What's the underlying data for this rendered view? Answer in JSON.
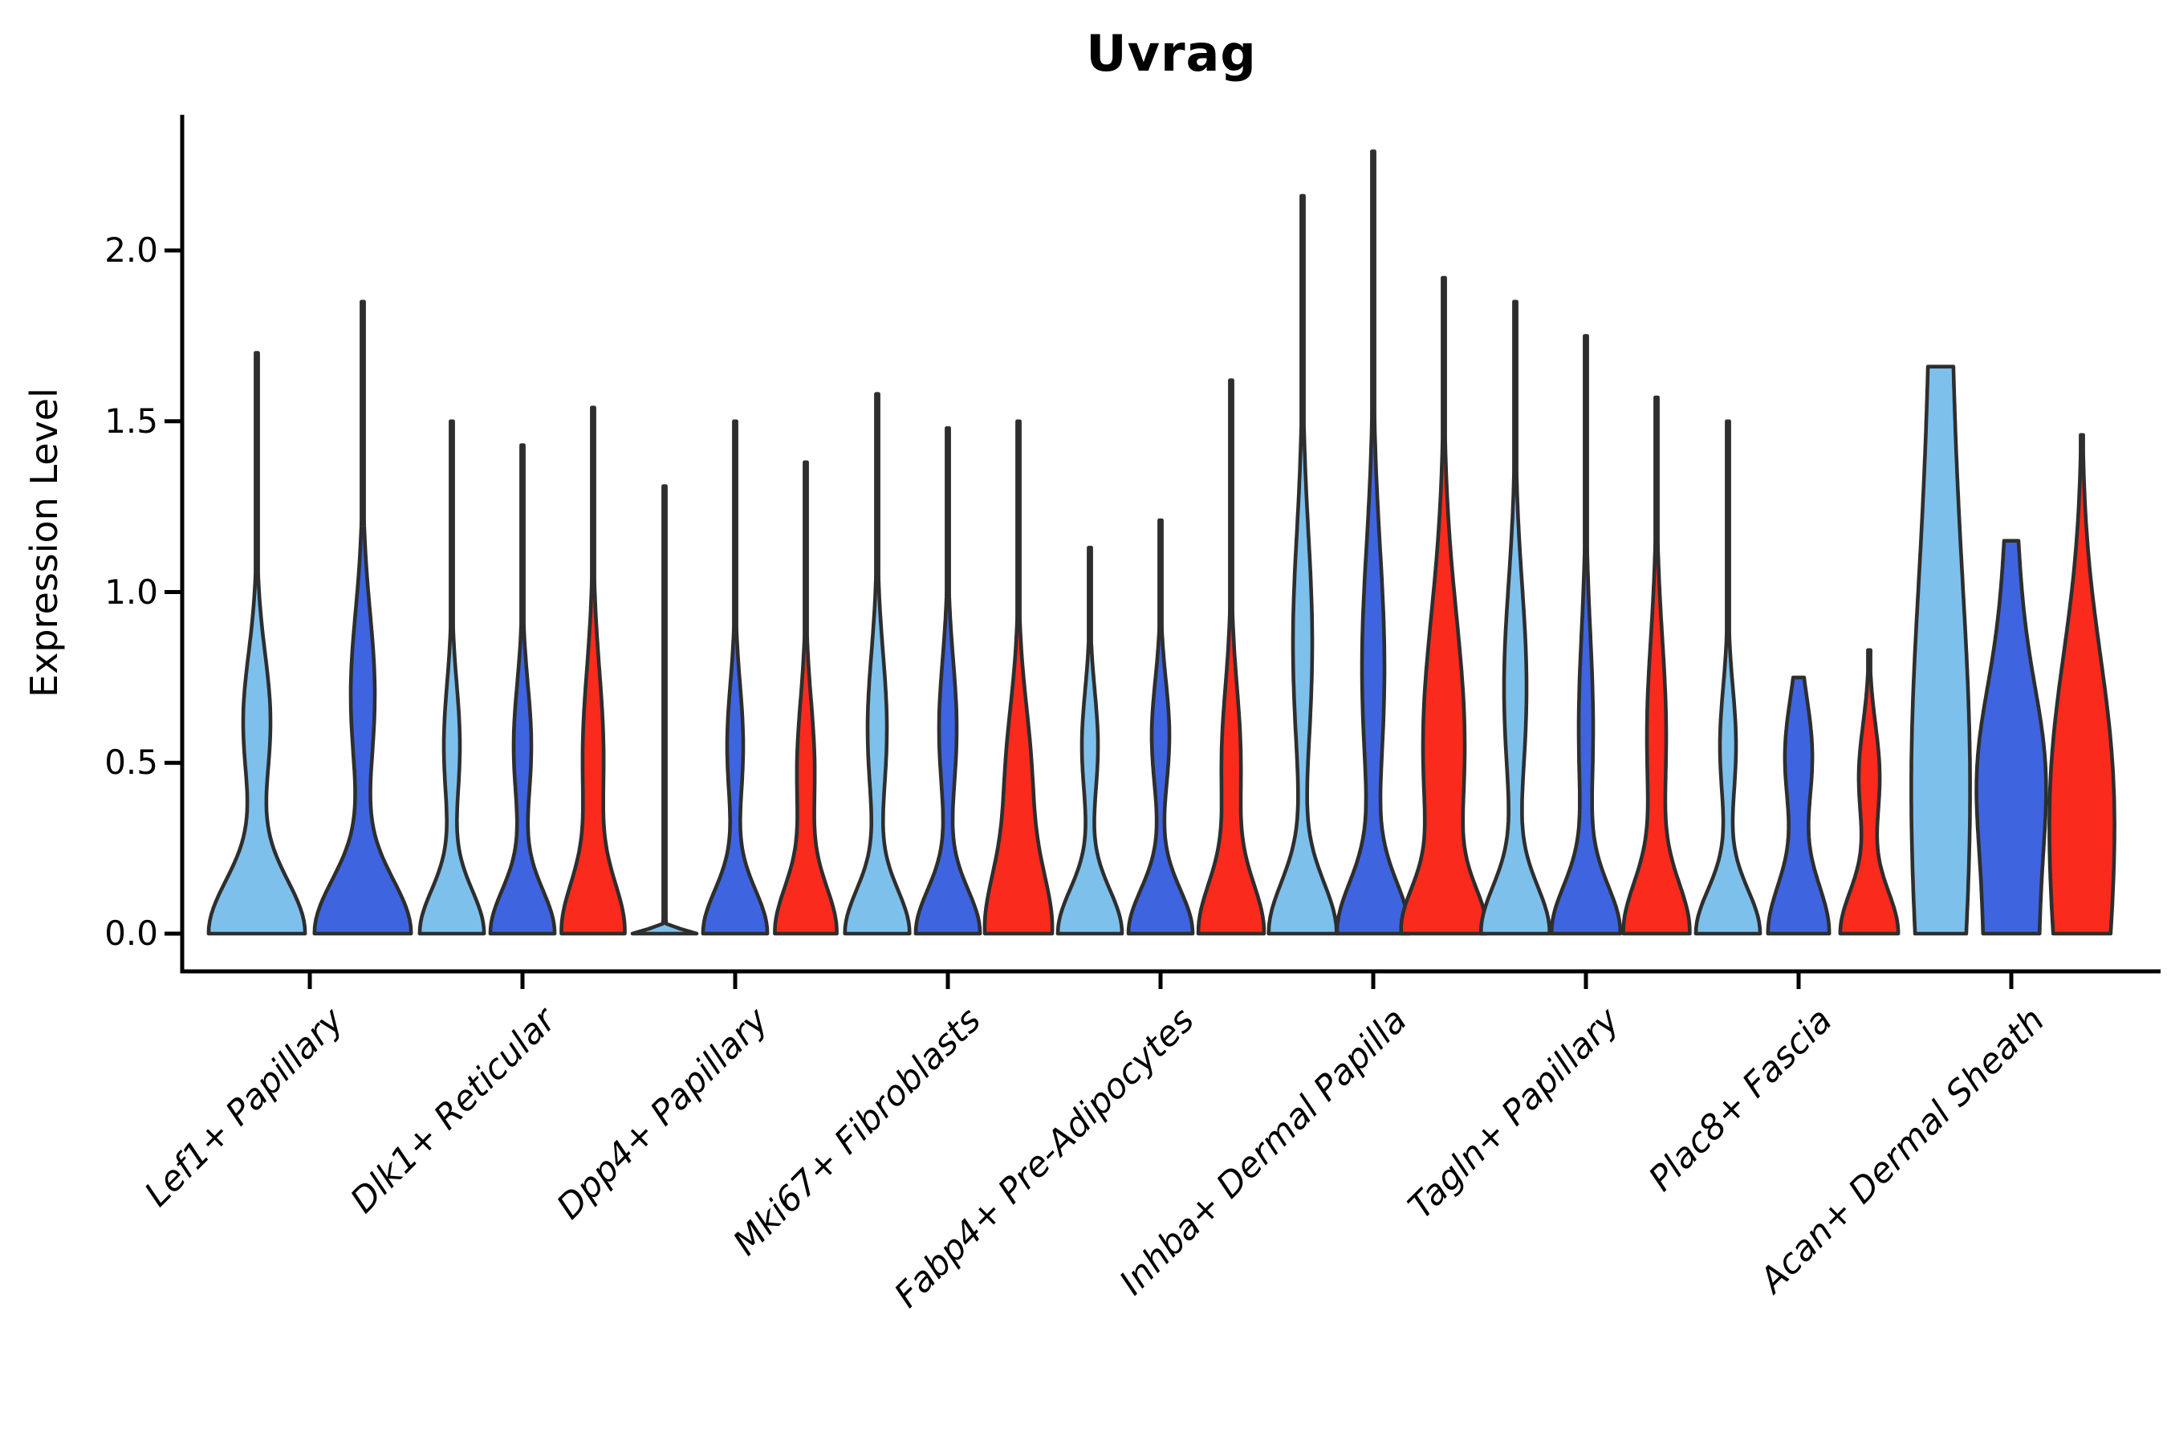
{
  "title": "Uvrag",
  "y_axis": {
    "label": "Expression Level",
    "tick_labels": [
      "0.0",
      "0.5",
      "1.0",
      "1.5",
      "2.0"
    ],
    "tick_values": [
      0.0,
      0.5,
      1.0,
      1.5,
      2.0
    ]
  },
  "x_axis": {
    "categories": [
      "Lef1+ Papillary",
      "Dlk1+ Reticular",
      "Dpp4+ Papillary",
      "Mki67+ Fibroblasts",
      "Fabp4+ Pre-Adipocytes",
      "Inhba+ Dermal Papilla",
      "Tagln+ Papillary",
      "Plac8+ Fascia",
      "Acan+ Dermal Sheath"
    ]
  },
  "palette": {
    "light_blue": "#7EC0EC",
    "dark_blue": "#3E64E0",
    "red": "#FA2A1D",
    "violin_outline": "#2E2E2E",
    "axis_color": "#000000"
  },
  "chart_data": {
    "type": "violin",
    "title": "Uvrag",
    "ylabel": "Expression Level",
    "ylim": [
      -0.11,
      2.45
    ],
    "yticks": [
      0.0,
      0.5,
      1.0,
      1.5,
      2.0
    ],
    "grid": false,
    "legend": "none",
    "shape_model": "half-width(v) = w0*exp(-0.5*(v/s0)^2) + w1*exp(-0.5*((v-m1)/s1)^2); max = violin top expression value; offset = px from category center; widths in px of figure",
    "categories": [
      "Lef1+ Papillary",
      "Dlk1+ Reticular",
      "Dpp4+ Papillary",
      "Mki67+ Fibroblasts",
      "Fabp4+ Pre-Adipocytes",
      "Inhba+ Dermal Papilla",
      "Tagln+ Papillary",
      "Plac8+ Fascia",
      "Acan+ Dermal Sheath"
    ],
    "groups": [
      {
        "category": "Lef1+ Papillary",
        "violins": [
          {
            "color": "light_blue",
            "max": 1.7,
            "offset": -66,
            "w0": 60,
            "s0": 0.16,
            "m1": 0.62,
            "w1": 17,
            "s1": 0.2
          },
          {
            "color": "dark_blue",
            "max": 1.85,
            "offset": 66,
            "w0": 60,
            "s0": 0.16,
            "m1": 0.7,
            "w1": 15,
            "s1": 0.24
          }
        ]
      },
      {
        "category": "Dlk1+ Reticular",
        "violins": [
          {
            "color": "light_blue",
            "max": 1.5,
            "offset": -88,
            "w0": 40,
            "s0": 0.13,
            "m1": 0.55,
            "w1": 10,
            "s1": 0.18
          },
          {
            "color": "dark_blue",
            "max": 1.43,
            "offset": 0,
            "w0": 40,
            "s0": 0.13,
            "m1": 0.55,
            "w1": 11,
            "s1": 0.18
          },
          {
            "color": "red",
            "max": 1.54,
            "offset": 88,
            "w0": 38,
            "s0": 0.15,
            "m1": 0.52,
            "w1": 13,
            "s1": 0.25
          }
        ]
      },
      {
        "category": "Dpp4+ Papillary",
        "violins": [
          {
            "color": "light_blue",
            "max": 1.31,
            "offset": -88,
            "w0": 40,
            "s0": 0.012,
            "m1": 0.0,
            "w1": 0,
            "s1": 1.0
          },
          {
            "color": "dark_blue",
            "max": 1.5,
            "offset": 0,
            "w0": 40,
            "s0": 0.13,
            "m1": 0.55,
            "w1": 10,
            "s1": 0.18
          },
          {
            "color": "red",
            "max": 1.38,
            "offset": 88,
            "w0": 38,
            "s0": 0.14,
            "m1": 0.48,
            "w1": 11,
            "s1": 0.2
          }
        ]
      },
      {
        "category": "Mki67+ Fibroblasts",
        "violins": [
          {
            "color": "light_blue",
            "max": 1.58,
            "offset": -88,
            "w0": 40,
            "s0": 0.13,
            "m1": 0.6,
            "w1": 12,
            "s1": 0.22
          },
          {
            "color": "dark_blue",
            "max": 1.48,
            "offset": 0,
            "w0": 40,
            "s0": 0.13,
            "m1": 0.6,
            "w1": 11,
            "s1": 0.2
          },
          {
            "color": "red",
            "max": 1.5,
            "offset": 88,
            "w0": 40,
            "s0": 0.18,
            "m1": 0.45,
            "w1": 16,
            "s1": 0.22
          }
        ]
      },
      {
        "category": "Fabp4+ Pre-Adipocytes",
        "violins": [
          {
            "color": "light_blue",
            "max": 1.13,
            "offset": -88,
            "w0": 40,
            "s0": 0.13,
            "m1": 0.55,
            "w1": 10,
            "s1": 0.16
          },
          {
            "color": "dark_blue",
            "max": 1.21,
            "offset": 0,
            "w0": 40,
            "s0": 0.13,
            "m1": 0.58,
            "w1": 11,
            "s1": 0.16
          },
          {
            "color": "red",
            "max": 1.62,
            "offset": 88,
            "w0": 40,
            "s0": 0.15,
            "m1": 0.5,
            "w1": 12,
            "s1": 0.22
          }
        ]
      },
      {
        "category": "Inhba+ Dermal Papilla",
        "violins": [
          {
            "color": "light_blue",
            "max": 2.16,
            "offset": -88,
            "w0": 42,
            "s0": 0.15,
            "m1": 0.85,
            "w1": 12,
            "s1": 0.32
          },
          {
            "color": "dark_blue",
            "max": 2.29,
            "offset": 0,
            "w0": 44,
            "s0": 0.15,
            "m1": 0.78,
            "w1": 14,
            "s1": 0.35
          },
          {
            "color": "red",
            "max": 1.92,
            "offset": 88,
            "w0": 44,
            "s0": 0.13,
            "m1": 0.55,
            "w1": 26,
            "s1": 0.38
          }
        ]
      },
      {
        "category": "Tagln+ Papillary",
        "violins": [
          {
            "color": "light_blue",
            "max": 1.85,
            "offset": -88,
            "w0": 42,
            "s0": 0.14,
            "m1": 0.72,
            "w1": 14,
            "s1": 0.3
          },
          {
            "color": "dark_blue",
            "max": 1.75,
            "offset": 0,
            "w0": 42,
            "s0": 0.14,
            "m1": 0.6,
            "w1": 9,
            "s1": 0.28
          },
          {
            "color": "red",
            "max": 1.57,
            "offset": 88,
            "w0": 40,
            "s0": 0.15,
            "m1": 0.58,
            "w1": 12,
            "s1": 0.28
          }
        ]
      },
      {
        "category": "Plac8+ Fascia",
        "violins": [
          {
            "color": "light_blue",
            "max": 1.5,
            "offset": -88,
            "w0": 40,
            "s0": 0.13,
            "m1": 0.55,
            "w1": 10,
            "s1": 0.17
          },
          {
            "color": "dark_blue",
            "max": 0.75,
            "offset": 0,
            "w0": 38,
            "s0": 0.15,
            "m1": 0.52,
            "w1": 17,
            "s1": 0.17
          },
          {
            "color": "red",
            "max": 0.83,
            "offset": 88,
            "w0": 36,
            "s0": 0.13,
            "m1": 0.46,
            "w1": 13,
            "s1": 0.15
          }
        ]
      },
      {
        "category": "Acan+ Dermal Sheath",
        "violins": [
          {
            "color": "light_blue",
            "max": 1.66,
            "offset": -88,
            "w0": 19,
            "s0": 2.2,
            "m1": 0.45,
            "w1": 18,
            "s1": 0.55
          },
          {
            "color": "dark_blue",
            "max": 1.15,
            "offset": 0,
            "w0": 34,
            "s0": 0.7,
            "m1": 0.5,
            "w1": 16,
            "s1": 0.22
          },
          {
            "color": "red",
            "max": 1.46,
            "offset": 88,
            "w0": 30,
            "s0": 0.5,
            "m1": 0.55,
            "w1": 20,
            "s1": 0.35
          }
        ]
      }
    ]
  }
}
